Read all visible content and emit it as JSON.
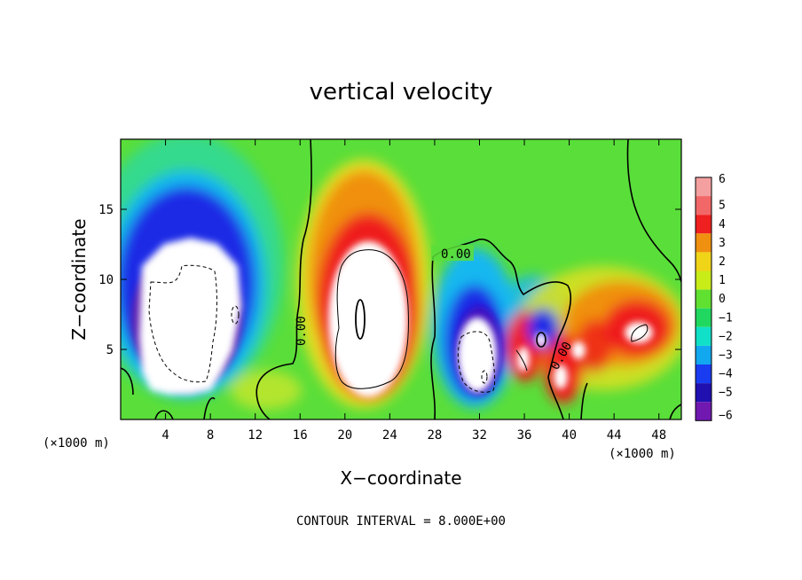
{
  "chart_data": {
    "type": "heatmap",
    "title": "vertical velocity",
    "xlabel": "X−coordinate",
    "ylabel": "Z−coordinate",
    "x_scale_note": "(×1000 m)",
    "x_scale_note_right": "(×1000 m)",
    "footer": "CONTOUR INTERVAL = 8.000E+00",
    "xlim": [
      0,
      50
    ],
    "ylim": [
      0,
      20
    ],
    "x_ticks": [
      4,
      8,
      12,
      16,
      20,
      24,
      28,
      32,
      36,
      40,
      44,
      48
    ],
    "x_tick_labels": [
      "4",
      "8",
      "12",
      "16",
      "20",
      "24",
      "28",
      "32",
      "36",
      "40",
      "44",
      "48"
    ],
    "y_ticks": [
      5,
      10,
      15
    ],
    "y_tick_labels": [
      "5",
      "10",
      "15"
    ],
    "contour_interval": 8.0,
    "contour_labels": [
      "0.00",
      "0.00",
      "0.00"
    ],
    "colorbar": {
      "levels": [
        6,
        5,
        4,
        3,
        2,
        1,
        0,
        -1,
        -2,
        -3,
        -4,
        -5,
        -6
      ],
      "labels": [
        "6",
        "5",
        "4",
        "3",
        "2",
        "1",
        "0",
        "−1",
        "−2",
        "−3",
        "−4",
        "−5",
        "−6"
      ],
      "colors": [
        "#f4a0a0",
        "#f26868",
        "#ef2020",
        "#f09010",
        "#f0d418",
        "#c8ec18",
        "#60e030",
        "#20d860",
        "#10e0c8",
        "#12a8f0",
        "#1a3cf0",
        "#2010b0",
        "#7018b0"
      ]
    },
    "background": "#5ade3a",
    "features": [
      {
        "name": "downdraft",
        "x": 5.5,
        "z": 8.5,
        "rx": 3.2,
        "rz": 4.2,
        "value": -10,
        "color": "#1a2ce6"
      },
      {
        "name": "updraft",
        "x": 22,
        "z": 8,
        "rx": 3.5,
        "rz": 5.5,
        "value": 14,
        "color": "#ef1a1a"
      },
      {
        "name": "downdraft",
        "x": 31.5,
        "z": 5.2,
        "rx": 1.7,
        "rz": 3.0,
        "value": -9,
        "color": "#1a2ce6"
      },
      {
        "name": "updraft",
        "x": 36.5,
        "z": 5,
        "rx": 1.1,
        "rz": 2.3,
        "value": 7,
        "color": "#ef1a1a"
      },
      {
        "name": "downdraft",
        "x": 37.6,
        "z": 6.3,
        "rx": 0.9,
        "rz": 1.6,
        "value": -6,
        "color": "#1a2ce6"
      },
      {
        "name": "updraft",
        "x": 39.8,
        "z": 4,
        "rx": 1.1,
        "rz": 2.0,
        "value": 7,
        "color": "#ef1a1a"
      },
      {
        "name": "updraft",
        "x": 46,
        "z": 6.3,
        "rx": 1.6,
        "rz": 2.0,
        "value": 7,
        "color": "#ef1a1a"
      }
    ]
  }
}
